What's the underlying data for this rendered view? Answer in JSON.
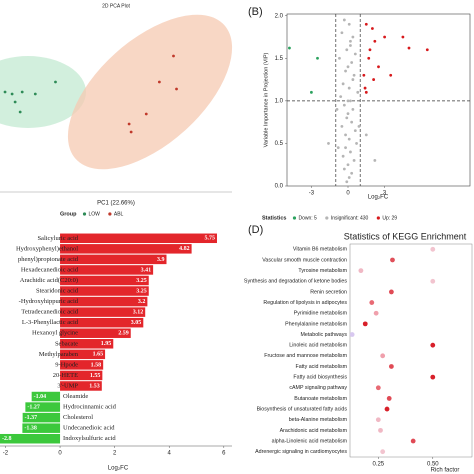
{
  "chart_data": [
    {
      "type": "scatter",
      "title": "2D PCA Plot",
      "x_label": "PC1 (22.66%)",
      "legend_title": "Group",
      "xlim": [
        0,
        230
      ],
      "ylim": [
        0,
        180
      ],
      "series": [
        {
          "name": "LOW",
          "color": "#2e8b57",
          "x": [
            5,
            12,
            15,
            22,
            35,
            55,
            20
          ],
          "y": [
            100,
            98,
            90,
            100,
            98,
            110,
            80
          ]
        },
        {
          "name": "ABL",
          "color": "#c0392b",
          "x": [
            172,
            158,
            145,
            128,
            130,
            175
          ],
          "y": [
            136,
            110,
            78,
            68,
            60,
            103
          ]
        }
      ]
    },
    {
      "type": "scatter",
      "panel_label": "(B)",
      "x_label": "Log₂FC",
      "y_label": "Variable Importance in Projection (VIP)",
      "legend_title": "Statistics",
      "frame": true,
      "xlim": [
        -5,
        10
      ],
      "ylim": [
        0,
        2.02
      ],
      "xticks": [
        -3,
        0,
        3
      ],
      "yticks": [
        {
          "value": 0,
          "label": "0.0"
        },
        {
          "value": 0.5,
          "label": "0.5"
        },
        {
          "value": 1,
          "label": "1.0"
        },
        {
          "value": 1.5,
          "label": "1.5"
        },
        {
          "value": 2,
          "label": "2.0"
        }
      ],
      "vlines": [
        -1,
        1
      ],
      "hlines": [
        1
      ],
      "series": [
        {
          "name": "Down: 5",
          "color": "#2ca25f",
          "x": [
            -4.8,
            -3,
            -2.5
          ],
          "y": [
            1.62,
            1.1,
            1.5
          ]
        },
        {
          "name": "Insignificant: 430",
          "color": "#b5b5b5",
          "x": [
            -0.3,
            0.1,
            -0.5,
            0.4,
            0.2,
            -0.1,
            0.6,
            -0.7,
            0.3,
            0,
            -0.2,
            0.5,
            -0.4,
            0.1,
            0.8,
            -0.6,
            0.2,
            -0.3,
            0.4,
            0,
            -0.1,
            0.3,
            -0.5,
            0.6,
            -0.2,
            0.1,
            0.7,
            -0.8,
            0.2,
            -0.4,
            0.5,
            0,
            -0.3,
            0.3,
            1.5,
            2.2,
            -1.6,
            0.1,
            -0.1,
            0.4,
            0.9,
            -0.9,
            0.2,
            -0.2,
            0
          ],
          "y": [
            1.95,
            1.9,
            1.8,
            1.75,
            1.7,
            1.6,
            1.55,
            1.5,
            1.45,
            1.4,
            1.35,
            1.3,
            1.2,
            1.15,
            1.1,
            1.05,
            1.0,
            0.95,
            0.9,
            0.85,
            0.8,
            0.75,
            0.7,
            0.65,
            0.6,
            0.55,
            0.5,
            0.45,
            0.4,
            0.35,
            0.3,
            0.25,
            0.2,
            0.15,
            0.6,
            0.3,
            0.5,
            0.1,
            0.05,
            1.25,
            0.7,
            0.9,
            1.65,
            0.45,
            1.0
          ]
        },
        {
          "name": "Up: 29",
          "color": "#d7191c",
          "x": [
            1.5,
            2,
            1.8,
            2.2,
            3,
            4.5,
            5,
            6.5,
            1.3,
            1.5,
            2.1,
            2.5,
            1.7,
            3.5,
            1.4
          ],
          "y": [
            1.9,
            1.85,
            1.6,
            1.7,
            1.75,
            1.75,
            1.62,
            1.6,
            1.3,
            1.1,
            1.25,
            1.4,
            1.5,
            1.3,
            1.15
          ]
        }
      ]
    },
    {
      "type": "bar",
      "x_label": "Log₂FC",
      "xlim": [
        -2.2,
        6.3
      ],
      "xticks": [
        -2,
        0,
        2,
        4,
        6
      ],
      "up_color": "#e3262b",
      "down_color": "#3cc83c",
      "categories": [
        "Salicyluric acid",
        "Hydroxyphenyl)ethanol",
        "phenyl)propionate acid",
        "Hexadecanedioic acid",
        "Arachidic acid(C20:0)",
        "Stearidonic acid",
        "-Hydroxyhippuric acid",
        "Tetradecanedioic acid",
        "L-3-Phenyllactic acid",
        "Hexanoyl glycine",
        "Sebacate",
        "Methylparaben",
        "9-Hpode",
        "20-HETE",
        "3'-UMP",
        "Oleamide",
        "Hydrocinnamic acid",
        "Cholesterol",
        "Undecanedioic acid",
        "Indoxylsulfuric acid"
      ],
      "values": [
        5.75,
        4.82,
        3.9,
        3.41,
        3.25,
        3.25,
        3.2,
        3.12,
        3.05,
        2.59,
        1.95,
        1.65,
        1.58,
        1.55,
        1.53,
        -1.04,
        -1.27,
        -1.37,
        -1.38,
        -2.8
      ]
    },
    {
      "type": "bubble",
      "panel_label": "(D)",
      "title": "Statistics of KEGG Enrichment",
      "x_label": "Rich factor",
      "xlim": [
        0.12,
        0.68
      ],
      "xticks": [
        0.25,
        {
          "value": 0.5,
          "label": "0.50"
        }
      ],
      "categories": [
        "Vitamin B6 metabolism",
        "Vascular smooth muscle contraction",
        "Tyrosine metabolism",
        "Synthesis and degradation of ketone bodies",
        "Renin secretion",
        "Regulation of lipolysis in adipocytes",
        "Pyrimidine metabolism",
        "Phenylalanine metabolism",
        "Metabolic pathways",
        "Linoleic acid metabolism",
        "Fructose and mannose metabolism",
        "Fatty acid metabolism",
        "Fatty acid biosynthesis",
        "cAMP signaling pathway",
        "Butanoate metabolism",
        "Biosynthesis of unsaturated fatty acids",
        "beta-Alanine metabolism",
        "Arachidonic acid metabolism",
        "alpha-Linolenic acid metabolism",
        "Adrenergic signaling in cardiomyocytes"
      ],
      "values": [
        0.5,
        0.315,
        0.17,
        0.5,
        0.31,
        0.22,
        0.24,
        0.19,
        0.13,
        0.5,
        0.27,
        0.31,
        0.5,
        0.25,
        0.3,
        0.29,
        0.25,
        0.26,
        0.41,
        0.27
      ],
      "colors": [
        "#f2c4cf",
        "#e0505a",
        "#f0b8c4",
        "#f2c4cf",
        "#e04a55",
        "#e86a74",
        "#f0a0ac",
        "#d8202a",
        "#d8c8f0",
        "#d8202a",
        "#f0a0ac",
        "#e04a55",
        "#d8202a",
        "#e86a74",
        "#e04a55",
        "#d8202a",
        "#f0b8c4",
        "#f0b8c4",
        "#e04a55",
        "#f2c4cf"
      ]
    }
  ]
}
